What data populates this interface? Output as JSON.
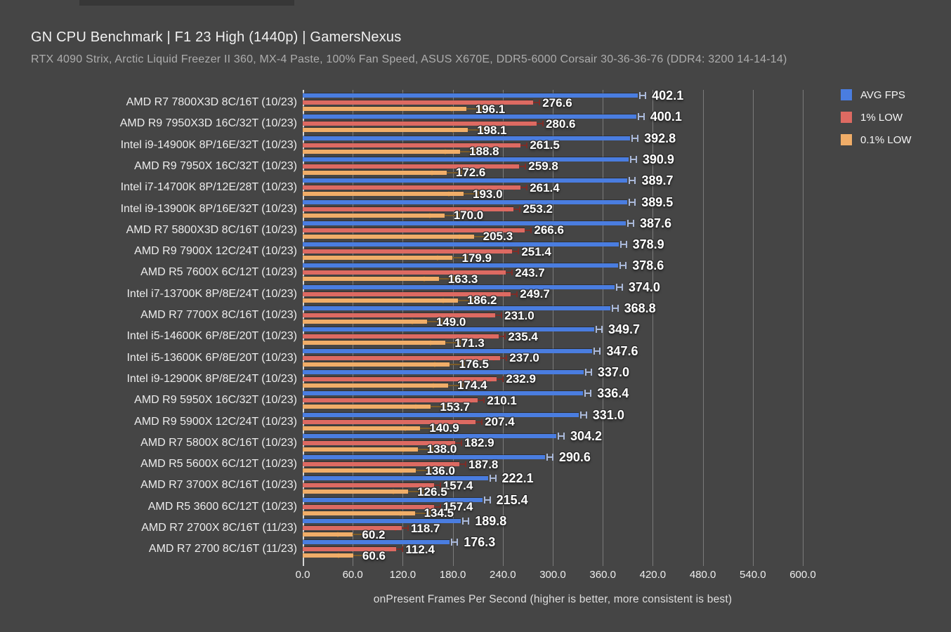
{
  "page": {
    "title": "GN CPU Benchmark | F1 23 High (1440p) | GamersNexus",
    "subtitle": "RTX 4090 Strix, Arctic Liquid Freezer II 360, MX-4 Paste, 100% Fan Speed, ASUS X670E, DDR5-6000 Corsair 30-36-36-76 (DDR4: 3200 14-14-14)",
    "background_color": "#454545"
  },
  "chart_data": {
    "type": "bar",
    "orientation": "horizontal",
    "title": "GN CPU Benchmark | F1 23 High (1440p) | GamersNexus",
    "subtitle": "RTX 4090 Strix, Arctic Liquid Freezer II 360, MX-4 Paste, 100% Fan Speed, ASUS X670E, DDR5-6000 Corsair 30-36-36-76 (DDR4: 3200 14-14-14)",
    "xlabel": "onPresent Frames Per Second (higher is better, more consistent is best)",
    "xlim": [
      0,
      631
    ],
    "grid": true,
    "legend_position": "top-right",
    "xticks": {
      "values": [
        0,
        60,
        120,
        180,
        240,
        300,
        360,
        420,
        480,
        540,
        600
      ],
      "labels": [
        "0.0",
        "60.0",
        "120.0",
        "180.0",
        "240.0",
        "300.0",
        "360.0",
        "420.0",
        "480.0",
        "540.0",
        "600.0"
      ]
    },
    "categories": [
      "AMD R7 7800X3D 8C/16T (10/23)",
      "AMD R9 7950X3D 16C/32T (10/23)",
      "Intel i9-14900K 8P/16E/32T (10/23)",
      "AMD R9 7950X 16C/32T (10/23)",
      "Intel i7-14700K 8P/12E/28T (10/23)",
      "Intel i9-13900K 8P/16E/32T (10/23)",
      "AMD R7 5800X3D 8C/16T (10/23)",
      "AMD R9 7900X 12C/24T (10/23)",
      "AMD R5 7600X 6C/12T (10/23)",
      "Intel i7-13700K 8P/8E/24T (10/23)",
      "AMD R7 7700X 8C/16T (10/23)",
      "Intel i5-14600K 6P/8E/20T (10/23)",
      "Intel i5-13600K 6P/8E/20T (10/23)",
      "Intel i9-12900K 8P/8E/24T (10/23)",
      "AMD R9 5950X 16C/32T (10/23)",
      "AMD R9 5900X 12C/24T (10/23)",
      "AMD R7 5800X 8C/16T (10/23)",
      "AMD R5 5600X 6C/12T (10/23)",
      "AMD R7 3700X 8C/16T (10/23)",
      "AMD R5 3600 6C/12T (10/23)",
      "AMD R7 2700X 8C/16T (11/23)",
      "AMD R7 2700 8C/16T (11/23)"
    ],
    "series": [
      {
        "name": "AVG FPS",
        "color": "#4a7de0",
        "whisker_color": "#aab9da",
        "values": [
          402.1,
          400.1,
          392.8,
          390.9,
          389.7,
          389.5,
          387.6,
          378.9,
          378.6,
          374.0,
          368.8,
          349.7,
          347.6,
          337.0,
          336.4,
          331.0,
          304.2,
          290.6,
          222.1,
          215.4,
          189.8,
          176.3
        ]
      },
      {
        "name": "1% LOW",
        "color": "#dd6a62",
        "whisker_color": "#7c2d28",
        "values": [
          276.6,
          280.6,
          261.5,
          259.8,
          261.4,
          253.2,
          266.6,
          251.4,
          243.7,
          249.7,
          231.0,
          235.4,
          237.0,
          232.9,
          210.1,
          207.4,
          182.9,
          187.8,
          157.4,
          157.4,
          118.7,
          112.4
        ]
      },
      {
        "name": "0.1% LOW",
        "color": "#f0ad68",
        "whisker_color": "#7d5c28",
        "values": [
          196.1,
          198.1,
          188.8,
          172.6,
          193.0,
          170.0,
          205.3,
          179.9,
          163.3,
          186.2,
          149.0,
          171.3,
          176.5,
          174.4,
          153.7,
          140.9,
          138.0,
          136.0,
          126.5,
          134.5,
          60.2,
          60.6
        ]
      }
    ]
  },
  "colors": {
    "background": "#454545",
    "gridline": "#8d8d8d",
    "axis_line": "#d6d6d6",
    "avg_fps": "#4a7de0",
    "one_percent_low": "#dd6a62",
    "point_one_percent_low": "#f0ad68"
  }
}
